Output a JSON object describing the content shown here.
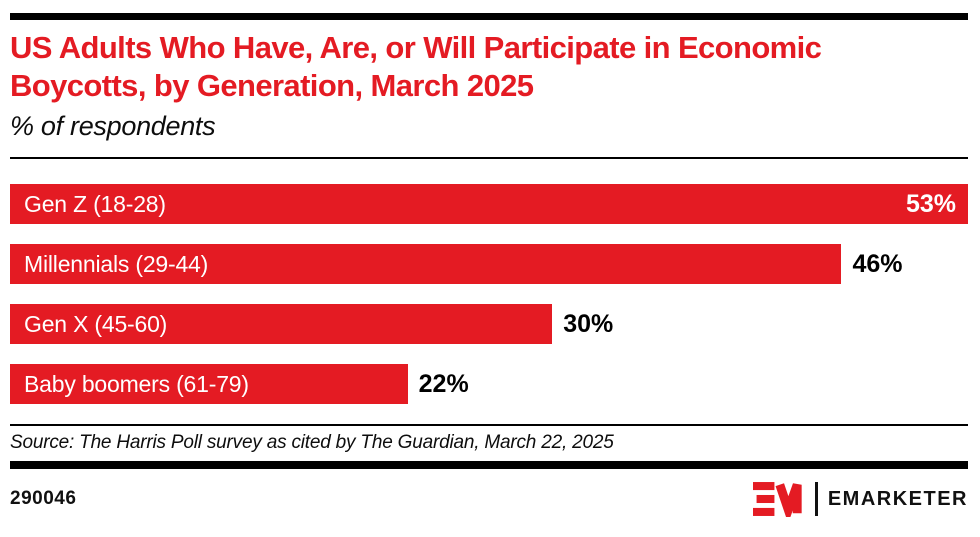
{
  "colors": {
    "accent_red": "#e41b23",
    "text_black": "#000000",
    "bar_label_white": "#ffffff"
  },
  "chart_data": {
    "type": "bar",
    "orientation": "horizontal",
    "title": "US Adults Who Have, Are, or Will Participate in Economic Boycotts, by Generation, March 2025",
    "subtitle": "% of respondents",
    "categories": [
      "Gen Z (18-28)",
      "Millennials (29-44)",
      "Gen X (45-60)",
      "Baby boomers (61-79)"
    ],
    "values": [
      53,
      46,
      30,
      22
    ],
    "value_labels": [
      "53%",
      "46%",
      "30%",
      "22%"
    ],
    "value_suffix": "%",
    "xlim": [
      0,
      53
    ],
    "grid": false,
    "legend": false,
    "source": "Source: The Harris Poll survey as cited by The Guardian, March 22, 2025"
  },
  "footer": {
    "chart_id": "290046",
    "brand_monogram": "EM",
    "brand_name": "EMARKETER"
  }
}
